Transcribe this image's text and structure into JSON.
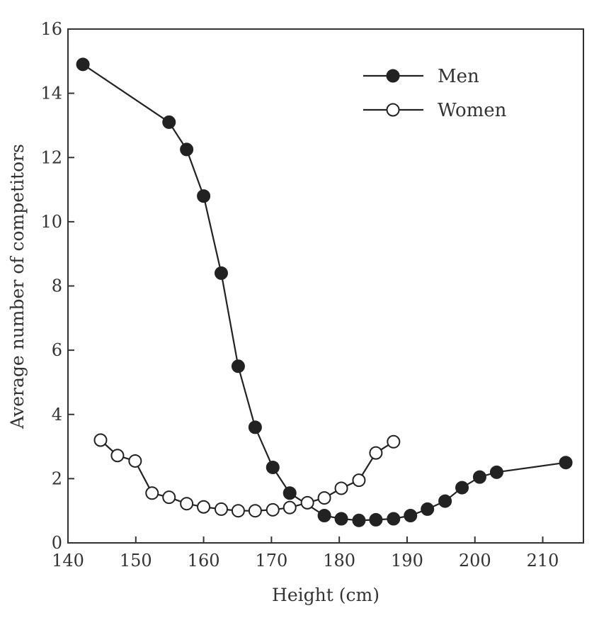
{
  "chart_data": {
    "type": "line",
    "title": "",
    "xlabel": "Height (cm)",
    "ylabel": "Average number of competitors",
    "xlim": [
      140,
      216
    ],
    "ylim": [
      0,
      16
    ],
    "xticks": [
      140,
      150,
      160,
      170,
      180,
      190,
      200,
      210
    ],
    "yticks": [
      0,
      2,
      4,
      6,
      8,
      10,
      12,
      14,
      16
    ],
    "grid": false,
    "legend_position": "top-right",
    "series": [
      {
        "name": "Men",
        "marker": "filled-circle",
        "color": "#222222",
        "x": [
          142.2,
          154.9,
          157.5,
          160.0,
          162.6,
          165.1,
          167.6,
          170.2,
          172.7,
          177.8,
          180.3,
          182.9,
          185.4,
          188.0,
          190.5,
          193.0,
          195.6,
          198.1,
          200.7,
          203.2,
          213.4
        ],
        "y": [
          14.9,
          13.1,
          12.25,
          10.8,
          8.4,
          5.5,
          3.6,
          2.35,
          1.55,
          0.85,
          0.75,
          0.7,
          0.72,
          0.75,
          0.85,
          1.05,
          1.3,
          1.72,
          2.05,
          2.2,
          2.5
        ]
      },
      {
        "name": "Women",
        "marker": "open-circle",
        "color": "#222222",
        "x": [
          144.8,
          147.3,
          149.9,
          152.4,
          154.9,
          157.5,
          160.0,
          162.6,
          165.1,
          167.6,
          170.2,
          172.7,
          175.3,
          177.8,
          180.3,
          182.9,
          185.4,
          188.0
        ],
        "y": [
          3.2,
          2.72,
          2.55,
          1.55,
          1.42,
          1.22,
          1.12,
          1.05,
          1.0,
          1.0,
          1.03,
          1.1,
          1.25,
          1.4,
          1.7,
          1.95,
          2.8,
          3.15
        ]
      }
    ]
  }
}
